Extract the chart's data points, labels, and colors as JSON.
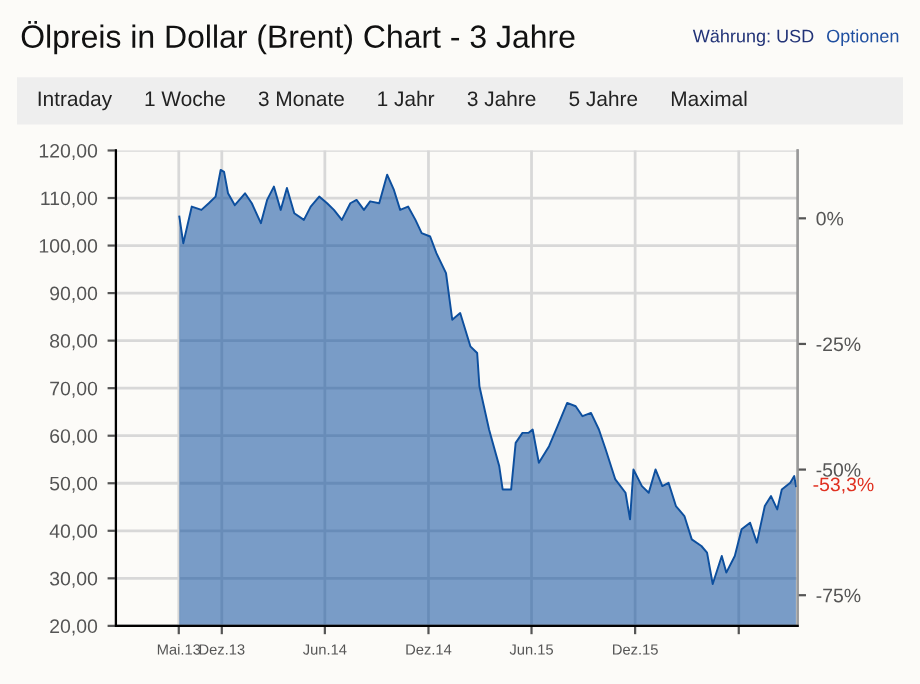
{
  "chart_data": {
    "type": "area",
    "title": "Ölpreis in Dollar (Brent) Chart - 3 Jahre",
    "annotations": [
      "Währung: USD",
      "Optionen",
      "Intraday",
      "1 Woche",
      "3 Monate",
      "1 Jahr",
      "3 Jahre",
      "5 Jahre",
      "Maximal",
      {
        "text": "-53,3%",
        "x": "2016-09-10",
        "y": 49.4
      }
    ],
    "series": [
      {
        "color": "#0d4f9e",
        "x": [
          "2013-09-17",
          "2013-09-24",
          "2013-10-09",
          "2013-10-26",
          "2013-11-08",
          "2013-11-20",
          "2013-11-29",
          "2013-12-05",
          "2013-12-12",
          "2013-12-24",
          "2014-01-11",
          "2014-01-23",
          "2014-02-08",
          "2014-02-19",
          "2014-03-03",
          "2014-03-15",
          "2014-03-26",
          "2014-04-08",
          "2014-04-25",
          "2014-05-07",
          "2014-05-22",
          "2014-06-05",
          "2014-06-17",
          "2014-07-01",
          "2014-07-16",
          "2014-07-27",
          "2014-08-09",
          "2014-08-20",
          "2014-09-05",
          "2014-09-19",
          "2014-10-01",
          "2014-10-12",
          "2014-10-26",
          "2014-11-08",
          "2014-11-19",
          "2014-12-04",
          "2014-12-15",
          "2015-01-01",
          "2015-01-12",
          "2015-01-26",
          "2015-02-13",
          "2015-02-25",
          "2015-03-01",
          "2015-03-18",
          "2015-04-05",
          "2015-04-11",
          "2015-04-26",
          "2015-05-04",
          "2015-05-16",
          "2015-05-27",
          "2015-06-03",
          "2015-06-14",
          "2015-07-02",
          "2015-07-17",
          "2015-08-03",
          "2015-08-18",
          "2015-08-30",
          "2015-09-14",
          "2015-09-28",
          "2015-10-10",
          "2015-10-27",
          "2015-11-14",
          "2015-11-22",
          "2015-11-28",
          "2015-12-13",
          "2015-12-25",
          "2016-01-06",
          "2016-01-18",
          "2016-01-29",
          "2016-02-11",
          "2016-02-26",
          "2016-03-10",
          "2016-03-27",
          "2016-04-06",
          "2016-04-16",
          "2016-05-02",
          "2016-05-10",
          "2016-05-25",
          "2016-06-06",
          "2016-06-21",
          "2016-07-03",
          "2016-07-17",
          "2016-07-28",
          "2016-08-08",
          "2016-08-16",
          "2016-08-31",
          "2016-09-07",
          "2016-09-10"
        ],
        "values": [
          106.1,
          100.5,
          108.2,
          107.5,
          108.9,
          110.3,
          115.9,
          115.5,
          111.0,
          108.5,
          111.0,
          108.9,
          104.7,
          109.6,
          112.4,
          107.5,
          112.1,
          106.8,
          105.4,
          108.2,
          110.3,
          108.9,
          107.5,
          105.4,
          108.9,
          109.6,
          107.5,
          109.3,
          108.9,
          114.9,
          111.7,
          107.5,
          108.2,
          105.4,
          102.6,
          101.9,
          98.4,
          94.2,
          84.4,
          85.8,
          78.8,
          77.4,
          70.4,
          61.3,
          53.6,
          48.7,
          48.7,
          58.5,
          60.6,
          60.6,
          61.3,
          54.3,
          57.8,
          62.0,
          66.9,
          66.2,
          64.1,
          64.8,
          61.3,
          57.1,
          50.8,
          48.0,
          42.4,
          52.9,
          49.4,
          48.0,
          52.9,
          49.4,
          50.1,
          45.2,
          43.1,
          38.2,
          36.8,
          35.4,
          28.8,
          34.7,
          31.2,
          34.7,
          40.3,
          41.7,
          37.5,
          45.2,
          47.3,
          44.5,
          48.7,
          50.1,
          51.5,
          49.4
        ]
      }
    ],
    "xlim": [
      "2013-05-28",
      "2016-09-13"
    ],
    "xticks": [
      {
        "value": "2013-09-16",
        "label": "Mai.13"
      },
      {
        "value": "2013-12-01",
        "label": "Dez.13"
      },
      {
        "value": "2014-06-01",
        "label": "Jun.14"
      },
      {
        "value": "2014-12-01",
        "label": "Dez.14"
      },
      {
        "value": "2015-06-01",
        "label": "Jun.15"
      },
      {
        "value": "2015-12-01",
        "label": "Dez.15"
      },
      {
        "value": "2016-06-01",
        "label": null
      }
    ],
    "ylim": [
      20,
      120
    ],
    "yticks": [
      {
        "value": 20,
        "label": "20,00"
      },
      {
        "value": 30,
        "label": "30,00"
      },
      {
        "value": 40,
        "label": "40,00"
      },
      {
        "value": 50,
        "label": "50,00"
      },
      {
        "value": 60,
        "label": "60,00"
      },
      {
        "value": 70,
        "label": "70,00"
      },
      {
        "value": 80,
        "label": "80,00"
      },
      {
        "value": 90,
        "label": "90,00"
      },
      {
        "value": 100,
        "label": "100,00"
      },
      {
        "value": 110,
        "label": "110,00"
      },
      {
        "value": 120,
        "label": "120,00"
      }
    ],
    "y2lim": [
      -81.1,
      13.5
    ],
    "y2ticks": [
      {
        "value": 0,
        "label": "0%"
      },
      {
        "value": -25,
        "label": "-25%"
      },
      {
        "value": -50,
        "label": "-50%"
      },
      {
        "value": -75,
        "label": "-75%"
      }
    ],
    "grid": true
  }
}
